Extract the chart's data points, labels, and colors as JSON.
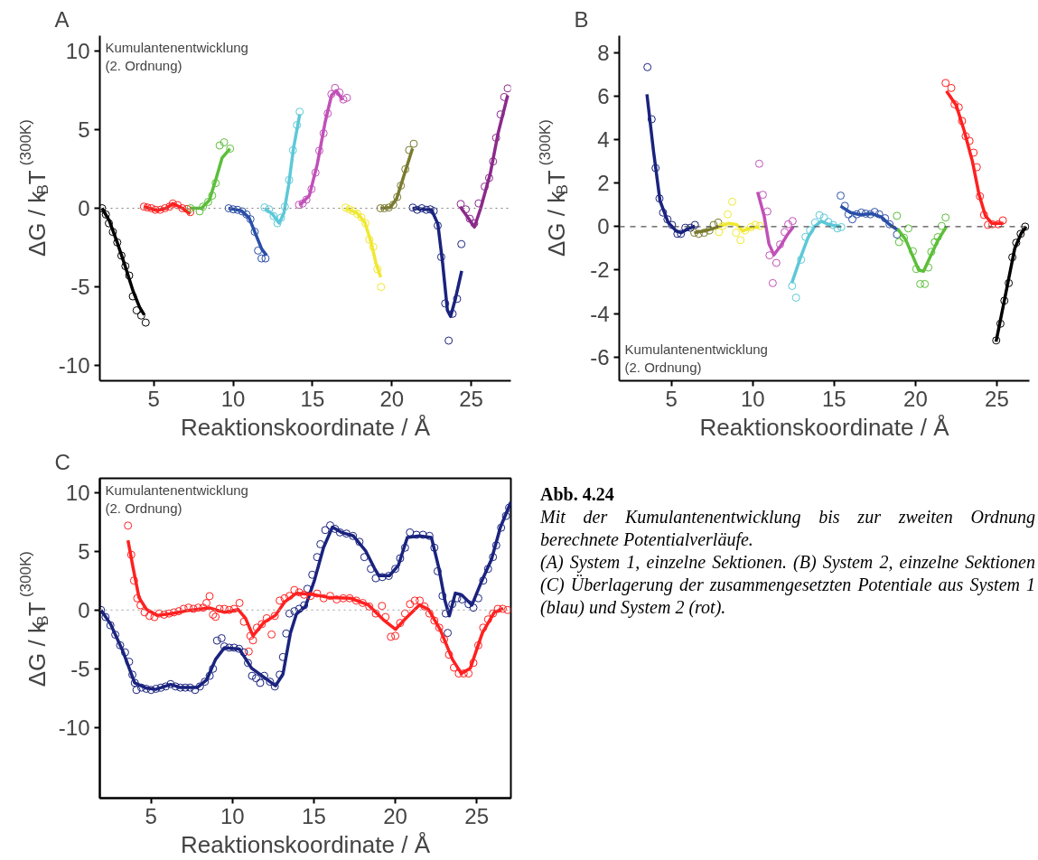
{
  "chart_data": [
    {
      "type": "line",
      "title": "A",
      "xlabel": "Reaktionskoordinate / Å",
      "ylabel": "ΔG / k$_{B}$T$^{(300K)}$",
      "annotations": [
        "Kumulantenentwicklung\n(2. Ordnung)"
      ],
      "xlim": [
        1.6,
        27.5
      ],
      "xticks": [
        5,
        10,
        15,
        20,
        25
      ],
      "ylim": [
        -11,
        11
      ],
      "yticks": [
        -10,
        -5,
        0,
        5,
        10
      ],
      "grid": false,
      "line_style": "solid",
      "ref_lines": [
        {
          "axis": "y",
          "value": 0,
          "color": "#808080",
          "line_style": "dotted"
        }
      ],
      "series": [
        {
          "type": "scatter",
          "color": "#000000",
          "x": [
            1.74,
            1.98,
            2.17,
            2.42,
            2.7,
            2.96,
            3.21,
            3.45,
            3.68,
            3.92,
            4.21,
            4.49
          ],
          "values": [
            0,
            -0.4,
            -0.96,
            -1.51,
            -2.18,
            -3.02,
            -3.69,
            -4.29,
            -5.62,
            -6.51,
            -6.84,
            -7.29
          ]
        },
        {
          "type": "line",
          "color": "#000000",
          "x": [
            1.74,
            2.2,
            2.7,
            3.2,
            3.7,
            4.1,
            4.4
          ],
          "values": [
            0,
            -0.8,
            -2.2,
            -3.7,
            -5.3,
            -6.3,
            -6.8
          ]
        },
        {
          "type": "scatter",
          "color": "#ff2020",
          "x": [
            4.38,
            4.6,
            4.85,
            5.1,
            5.4,
            5.7,
            6.0,
            6.2,
            6.5,
            6.8,
            7.1,
            7.3
          ],
          "values": [
            0.1,
            0.05,
            0,
            -0.1,
            -0.1,
            0,
            0.1,
            0.3,
            0.2,
            0,
            -0.05,
            -0.25
          ]
        },
        {
          "type": "line",
          "color": "#ff2020",
          "x": [
            4.4,
            5.2,
            5.8,
            6.2,
            6.8,
            7.3
          ],
          "values": [
            0.1,
            -0.15,
            0,
            0.3,
            0,
            -0.35
          ]
        },
        {
          "type": "scatter",
          "color": "#5cbf3a",
          "x": [
            7.32,
            7.89,
            8.1,
            8.43,
            8.68,
            8.9,
            9.15,
            9.43,
            9.81
          ],
          "values": [
            0,
            -0.2,
            0.1,
            0.4,
            0.8,
            1.6,
            4.0,
            4.2,
            3.8
          ]
        },
        {
          "type": "line",
          "color": "#5cbf3a",
          "x": [
            7.3,
            8.0,
            8.5,
            8.9,
            9.3,
            9.8
          ],
          "values": [
            0,
            0,
            0.5,
            1.8,
            3.2,
            3.8
          ]
        },
        {
          "type": "scatter",
          "color": "#2a4ea8",
          "x": [
            9.72,
            10.0,
            10.28,
            10.57,
            10.85,
            11.09,
            11.36,
            11.57,
            11.79,
            12.04
          ],
          "values": [
            0,
            -0.07,
            -0.1,
            -0.2,
            -0.4,
            -0.7,
            -1.5,
            -2.7,
            -3.2,
            -3.2
          ]
        },
        {
          "type": "line",
          "color": "#2a4ea8",
          "x": [
            9.7,
            10.5,
            11.0,
            11.4,
            11.8,
            12.1
          ],
          "values": [
            0,
            -0.15,
            -0.6,
            -1.6,
            -2.6,
            -3.0
          ]
        },
        {
          "type": "scatter",
          "color": "#5cc8d8",
          "x": [
            11.98,
            12.26,
            12.55,
            12.79,
            13.02,
            13.26,
            13.53,
            13.77,
            14.02,
            14.19
          ],
          "values": [
            0.05,
            -0.07,
            -0.5,
            -0.96,
            -0.6,
            0.1,
            1.8,
            3.7,
            5.3,
            6.15
          ]
        },
        {
          "type": "line",
          "color": "#5cc8d8",
          "x": [
            12.0,
            12.5,
            12.9,
            13.2,
            13.5,
            13.8,
            14.2
          ],
          "values": [
            0,
            -0.4,
            -0.95,
            -0.3,
            1.5,
            3.8,
            6.0
          ]
        },
        {
          "type": "scatter",
          "color": "#c050b8",
          "x": [
            14.15,
            14.38,
            14.62,
            14.94,
            15.19,
            15.43,
            15.7,
            15.96,
            16.19,
            16.42,
            16.7,
            16.94,
            17.17
          ],
          "values": [
            0.22,
            0.3,
            0.55,
            1.22,
            2.27,
            3.67,
            4.78,
            6.04,
            7.27,
            7.67,
            7.38,
            6.93,
            7.04
          ]
        },
        {
          "type": "line",
          "color": "#c050b8",
          "x": [
            14.2,
            14.8,
            15.3,
            15.8,
            16.2,
            16.5,
            16.9
          ],
          "values": [
            0.2,
            0.8,
            2.8,
            5.5,
            7.2,
            7.5,
            6.9
          ]
        },
        {
          "type": "scatter",
          "color": "#f0e830",
          "x": [
            17.08,
            17.32,
            17.55,
            17.83,
            18.08,
            18.34,
            18.58,
            18.83,
            19.09,
            19.32
          ],
          "values": [
            0.04,
            -0.07,
            -0.18,
            -0.36,
            -0.58,
            -0.96,
            -2.0,
            -2.47,
            -3.89,
            -5.02
          ]
        },
        {
          "type": "line",
          "color": "#f0e830",
          "x": [
            17.1,
            17.8,
            18.3,
            18.7,
            19.0,
            19.3
          ],
          "values": [
            0,
            -0.3,
            -0.9,
            -2.2,
            -3.5,
            -4.4
          ]
        },
        {
          "type": "scatter",
          "color": "#7a7a30",
          "x": [
            19.28,
            19.53,
            19.81,
            20.09,
            20.34,
            20.57,
            20.85,
            21.09,
            21.38
          ],
          "values": [
            0,
            0,
            0.04,
            0.22,
            0.71,
            1.44,
            2.49,
            3.71,
            4.11
          ]
        },
        {
          "type": "line",
          "color": "#7a7a30",
          "x": [
            19.3,
            19.9,
            20.3,
            20.8,
            21.3
          ],
          "values": [
            0,
            0.05,
            0.6,
            2.2,
            3.8
          ]
        },
        {
          "type": "scatter",
          "color": "#1a237e",
          "x": [
            21.32,
            21.6,
            21.89,
            22.17,
            22.42,
            22.64,
            22.89,
            23.11,
            23.36,
            23.58,
            23.83,
            24.11,
            24.38
          ],
          "values": [
            0.04,
            -0.1,
            0,
            -0.1,
            -0.07,
            -0.18,
            -1.11,
            -3.11,
            -6.07,
            -8.44,
            -6.73,
            -5.78,
            -2.29
          ]
        },
        {
          "type": "line",
          "color": "#1a237e",
          "x": [
            21.3,
            22.5,
            22.9,
            23.2,
            23.5,
            23.7,
            24.0,
            24.4
          ],
          "values": [
            0,
            -0.1,
            -1.0,
            -3.5,
            -6.5,
            -6.9,
            -5.8,
            -4.0
          ]
        },
        {
          "type": "scatter",
          "color": "#8b2a8b",
          "x": [
            24.34,
            24.66,
            24.91,
            25.19,
            25.47,
            25.85,
            26.13,
            26.38,
            26.57,
            26.85,
            27.08,
            27.3
          ],
          "values": [
            0.27,
            -0.07,
            -0.67,
            -0.96,
            0.31,
            1.38,
            1.93,
            2.98,
            4.49,
            5.98,
            7.09,
            7.64
          ]
        },
        {
          "type": "line",
          "color": "#8b2a8b",
          "x": [
            24.3,
            24.8,
            25.2,
            25.6,
            26.2,
            26.7,
            27.3
          ],
          "values": [
            0.1,
            -0.6,
            -1.2,
            0,
            2.2,
            4.8,
            7.2
          ]
        }
      ]
    },
    {
      "type": "line",
      "title": "B",
      "xlabel": "Reaktionskoordinate / Å",
      "ylabel": "ΔG / k$_{B}$T$^{(300K)}$",
      "annotations": [
        "Kumulantenentwicklung\n(2. Ordnung)"
      ],
      "xlim": [
        1.8,
        27.0
      ],
      "xticks": [
        5,
        10,
        15,
        20,
        25
      ],
      "ylim": [
        -7.1,
        8.8
      ],
      "yticks": [
        -6,
        -4,
        -2,
        0,
        2,
        4,
        6,
        8
      ],
      "grid": false,
      "line_style": "solid",
      "ref_lines": [
        {
          "axis": "y",
          "value": 0,
          "color": "#505050",
          "line_style": "dashed"
        }
      ],
      "series": [
        {
          "type": "scatter",
          "color": "#1a237e",
          "x": [
            3.53,
            3.79,
            4.03,
            4.27,
            4.49,
            4.76,
            5.04,
            5.37,
            5.59,
            5.86,
            6.17,
            6.45
          ],
          "values": [
            7.35,
            4.95,
            2.7,
            1.3,
            0.65,
            0.34,
            0.08,
            -0.33,
            -0.33,
            -0.05,
            -0.05,
            0.08
          ]
        },
        {
          "type": "line",
          "color": "#1a237e",
          "x": [
            3.5,
            3.9,
            4.3,
            4.8,
            5.3,
            5.6,
            6.0,
            6.45
          ],
          "values": [
            6.1,
            3.5,
            1.2,
            0.2,
            -0.2,
            -0.28,
            -0.1,
            0.02
          ]
        },
        {
          "type": "scatter",
          "color": "#7a7a30",
          "x": [
            6.41,
            6.68,
            7.01,
            7.33,
            7.6,
            7.88
          ],
          "values": [
            -0.28,
            -0.33,
            -0.28,
            -0.17,
            0.08,
            0.19
          ]
        },
        {
          "type": "line",
          "color": "#7a7a30",
          "x": [
            6.4,
            7.0,
            7.5,
            7.9
          ],
          "values": [
            -0.28,
            -0.2,
            -0.1,
            0
          ]
        },
        {
          "type": "scatter",
          "color": "#f0e830",
          "x": [
            7.93,
            8.15,
            8.46,
            8.74,
            8.97,
            9.25,
            9.52,
            9.89,
            10.16,
            10.44
          ],
          "values": [
            -0.25,
            0.03,
            0.57,
            1.15,
            -0.28,
            -0.62,
            -0.17,
            -0.02,
            0.08,
            0.03
          ]
        },
        {
          "type": "line",
          "color": "#f0e830",
          "x": [
            7.9,
            8.5,
            9.0,
            9.4,
            9.9,
            10.4
          ],
          "values": [
            0,
            0.15,
            0.1,
            -0.2,
            -0.05,
            0
          ]
        },
        {
          "type": "scatter",
          "color": "#c050b8",
          "x": [
            10.4,
            10.62,
            10.9,
            11.03,
            11.23,
            11.45,
            11.68,
            11.96,
            12.18,
            12.45
          ],
          "values": [
            2.9,
            1.47,
            0.7,
            -1.32,
            -2.6,
            -1.67,
            -0.82,
            -0.25,
            0.11,
            0.26
          ]
        },
        {
          "type": "line",
          "color": "#c050b8",
          "x": [
            10.3,
            10.7,
            11.0,
            11.3,
            11.7,
            12.1,
            12.5
          ],
          "values": [
            1.6,
            0.5,
            -0.8,
            -1.3,
            -0.9,
            -0.4,
            0
          ]
        },
        {
          "type": "scatter",
          "color": "#5cc8d8",
          "x": [
            12.42,
            12.66,
            12.97,
            13.24,
            13.52,
            13.83,
            14.1,
            14.38,
            14.65,
            14.93,
            15.2,
            15.44
          ],
          "values": [
            -2.73,
            -3.27,
            -1.52,
            -0.47,
            -0.16,
            0.19,
            0.53,
            0.42,
            0.22,
            0.08,
            -0.08,
            -0.02
          ]
        },
        {
          "type": "line",
          "color": "#5cc8d8",
          "x": [
            12.4,
            12.9,
            13.4,
            13.8,
            14.2,
            14.7,
            15.4
          ],
          "values": [
            -2.6,
            -1.5,
            -0.5,
            0,
            0.25,
            0.1,
            0
          ]
        },
        {
          "type": "scatter",
          "color": "#2a4ea8",
          "x": [
            15.4,
            15.66,
            15.88,
            16.12,
            16.39,
            16.67,
            16.94,
            17.22,
            17.49,
            17.77,
            18.13,
            18.41,
            18.86
          ],
          "values": [
            1.43,
            0.96,
            0.57,
            0.34,
            0.57,
            0.65,
            0.6,
            0.57,
            0.68,
            0.57,
            0.39,
            0.11,
            -0.36
          ]
        },
        {
          "type": "line",
          "color": "#2a4ea8",
          "x": [
            15.4,
            16.0,
            16.6,
            17.3,
            17.9,
            18.4,
            18.9
          ],
          "values": [
            0.95,
            0.65,
            0.55,
            0.6,
            0.45,
            0.1,
            -0.15
          ]
        },
        {
          "type": "scatter",
          "color": "#5cbf3a",
          "x": [
            18.86,
            18.99,
            19.29,
            19.56,
            19.84,
            20.05,
            20.29,
            20.57,
            20.79,
            20.97,
            21.19,
            21.37,
            21.61,
            21.85
          ],
          "values": [
            0.5,
            -0.71,
            -0.51,
            -0.08,
            -1.13,
            -1.95,
            -2.64,
            -2.64,
            -1.88,
            -1.16,
            -0.71,
            -0.48,
            0.03,
            0.42
          ]
        },
        {
          "type": "line",
          "color": "#5cbf3a",
          "x": [
            18.9,
            19.4,
            19.8,
            20.2,
            20.5,
            20.9,
            21.4,
            21.9
          ],
          "values": [
            -0.1,
            -0.6,
            -1.3,
            -2.0,
            -2.05,
            -1.4,
            -0.6,
            0
          ]
        },
        {
          "type": "scatter",
          "color": "#ff2020",
          "x": [
            21.85,
            22.2,
            22.4,
            22.66,
            22.86,
            23.08,
            23.32,
            23.57,
            23.77,
            23.96,
            24.21,
            24.45,
            24.73,
            25.09,
            25.37
          ],
          "values": [
            6.62,
            6.39,
            5.64,
            5.5,
            4.87,
            4.17,
            3.95,
            3.41,
            2.74,
            1.4,
            0.54,
            0.08,
            0.11,
            0.11,
            0.29
          ]
        },
        {
          "type": "line",
          "color": "#ff2020",
          "x": [
            21.9,
            22.5,
            23.0,
            23.5,
            23.9,
            24.3,
            24.7,
            25.4
          ],
          "values": [
            6.25,
            5.6,
            4.4,
            3.0,
            1.5,
            0.5,
            0.15,
            0.15
          ]
        },
        {
          "type": "scatter",
          "color": "#000000",
          "x": [
            24.96,
            25.22,
            25.46,
            25.73,
            25.95,
            26.19,
            26.46,
            26.74
          ],
          "values": [
            -5.24,
            -4.47,
            -3.41,
            -2.6,
            -1.41,
            -0.74,
            -0.33,
            0
          ]
        },
        {
          "type": "line",
          "color": "#000000",
          "x": [
            24.95,
            25.3,
            25.7,
            26.1,
            26.5,
            26.8
          ],
          "values": [
            -5.3,
            -4.0,
            -2.5,
            -1.0,
            -0.3,
            0
          ]
        }
      ]
    },
    {
      "type": "line",
      "title": "C",
      "xlabel": "Reaktionskoordinate / Å",
      "ylabel": "ΔG / k$_{B}$T$^{(300K)}$",
      "annotations": [
        "Kumulantenentwicklung\n(2. Ordnung)"
      ],
      "xlim": [
        1.85,
        27.1
      ],
      "xticks": [
        5,
        10,
        15,
        20,
        25
      ],
      "ylim": [
        -16,
        11.2
      ],
      "yticks": [
        -10,
        -5,
        0,
        5,
        10
      ],
      "grid": false,
      "line_style": "solid",
      "ref_lines": [
        {
          "axis": "y",
          "value": 0,
          "color": "#a0a0a0",
          "line_style": "dotted"
        }
      ],
      "series": [
        {
          "type": "scatter",
          "color": "#1a237e",
          "x": [
            1.92,
            2.2,
            2.5,
            2.8,
            3.1,
            3.4,
            3.65,
            3.85,
            4.0,
            4.1,
            4.4,
            4.7,
            5.0,
            5.3,
            5.6,
            5.9,
            6.2,
            6.5,
            6.8,
            7.1,
            7.4,
            7.7,
            8.0,
            8.3,
            8.6,
            8.8,
            9.05,
            9.33,
            9.5,
            9.8,
            10.1,
            10.4,
            10.7,
            10.95,
            11.2,
            11.45,
            11.7,
            11.95,
            12.3,
            12.6,
            12.9,
            13.1,
            13.3,
            13.5,
            13.8,
            14.1,
            14.4,
            14.6,
            14.9,
            15.2,
            15.4,
            15.7,
            16.0,
            16.3,
            16.6,
            17.0,
            17.4,
            17.8,
            18.1,
            18.5,
            18.8,
            19.2,
            19.6,
            20.0,
            20.3,
            20.6,
            20.9,
            21.3,
            21.7,
            22.1,
            22.4,
            22.6,
            22.9,
            23.1,
            23.22,
            23.5,
            23.8,
            24.1,
            24.5,
            24.8,
            25.1,
            25.4,
            25.7,
            26.0,
            26.2,
            26.5,
            26.8,
            27.0
          ],
          "values": [
            0,
            -0.6,
            -1.3,
            -2.1,
            -3.0,
            -3.6,
            -4.4,
            -5.5,
            -6.2,
            -6.8,
            -6.6,
            -6.7,
            -6.8,
            -6.7,
            -6.6,
            -6.5,
            -6.3,
            -6.5,
            -6.6,
            -6.6,
            -6.6,
            -6.8,
            -6.5,
            -6.1,
            -5.6,
            -5.0,
            -2.6,
            -2.4,
            -3.1,
            -3.2,
            -3.2,
            -3.3,
            -3.6,
            -4.5,
            -5.6,
            -5.8,
            -6.2,
            -5.6,
            -6.1,
            -6.5,
            -5.5,
            -4.0,
            -2.0,
            -0.3,
            -0.1,
            0.1,
            0.4,
            1.8,
            3.0,
            4.5,
            5.6,
            6.8,
            7.2,
            6.9,
            6.6,
            6.5,
            6.3,
            5.8,
            4.5,
            3.5,
            2.7,
            2.8,
            2.9,
            3.5,
            4.4,
            5.3,
            6.6,
            6.4,
            6.4,
            6.3,
            5.3,
            3.3,
            1.2,
            -0.3,
            -1.95,
            0.5,
            1.0,
            0.9,
            0.5,
            0.2,
            1.0,
            2.5,
            3.5,
            4.5,
            5.5,
            7.0,
            8.0,
            8.7
          ]
        },
        {
          "type": "line",
          "color": "#1a237e",
          "x": [
            1.92,
            2.51,
            3.25,
            3.99,
            4.72,
            5.28,
            6.2,
            6.75,
            7.85,
            8.41,
            8.96,
            9.51,
            10.43,
            11.17,
            11.91,
            12.64,
            13.1,
            13.56,
            13.93,
            14.48,
            15.04,
            15.59,
            16.14,
            16.69,
            17.43,
            18.17,
            18.72,
            18.99,
            19.64,
            20.19,
            20.74,
            21.48,
            22.22,
            22.68,
            23.05,
            23.32,
            23.69,
            24.06,
            24.71,
            25.26,
            25.91,
            26.46,
            27.1
          ],
          "values": [
            0,
            -1.2,
            -3.45,
            -6.2,
            -6.65,
            -6.75,
            -6.33,
            -6.58,
            -6.58,
            -5.95,
            -4.2,
            -3.2,
            -3.33,
            -4.95,
            -5.7,
            -6.45,
            -5.45,
            -1.95,
            -0.33,
            0.3,
            2.55,
            5.3,
            7.05,
            6.6,
            6.3,
            5.05,
            3.55,
            2.92,
            2.92,
            3.8,
            6.17,
            6.3,
            6.17,
            3.55,
            0.8,
            -0.5,
            1.43,
            1.3,
            0.43,
            2.3,
            4.3,
            7.05,
            9.18
          ]
        },
        {
          "type": "scatter",
          "color": "#ff2020",
          "x": [
            3.58,
            3.78,
            3.95,
            4.15,
            4.35,
            4.6,
            4.9,
            5.2,
            5.5,
            5.8,
            6.1,
            6.4,
            6.7,
            7.0,
            7.3,
            7.6,
            7.9,
            8.2,
            8.4,
            8.59,
            8.8,
            8.96,
            9.2,
            9.5,
            9.8,
            10.1,
            10.43,
            10.7,
            11.0,
            11.1,
            11.26,
            11.5,
            11.8,
            12.1,
            12.4,
            12.6,
            12.9,
            13.2,
            13.5,
            13.8,
            14.1,
            14.4,
            14.8,
            15.2,
            15.6,
            16.0,
            16.4,
            16.8,
            17.2,
            17.6,
            18.0,
            18.4,
            18.8,
            19.18,
            19.4,
            19.73,
            20.0,
            20.3,
            20.6,
            20.9,
            21.2,
            21.5,
            21.8,
            22.1,
            22.4,
            22.7,
            23.0,
            23.3,
            23.6,
            23.9,
            24.2,
            24.5,
            24.8,
            25.1,
            25.4,
            25.7,
            26.0,
            26.3,
            26.6,
            26.9
          ],
          "values": [
            7.18,
            4.7,
            2.5,
            1.0,
            0.4,
            -0.2,
            -0.5,
            -0.6,
            -0.3,
            -0.4,
            -0.3,
            -0.2,
            -0.1,
            0.1,
            0.2,
            0.1,
            0.2,
            0.2,
            0.6,
            1.18,
            -0.4,
            -0.58,
            0.1,
            0.1,
            0.0,
            0.1,
            0.6,
            -1.0,
            -3.53,
            -2.2,
            -2.58,
            -1.5,
            -1.2,
            -0.7,
            -2.08,
            -0.5,
            0.8,
            1.0,
            1.2,
            1.7,
            1.5,
            1.3,
            1.2,
            1.4,
            1.0,
            1.2,
            0.9,
            1.0,
            1.0,
            0.8,
            0.6,
            0.3,
            -0.3,
            0.35,
            -0.6,
            -2.28,
            -2.2,
            -1.1,
            -0.3,
            0.5,
            0.8,
            0.8,
            0.3,
            -0.3,
            -0.9,
            -1.5,
            -2.5,
            -3.8,
            -4.9,
            -5.4,
            -5.4,
            -5.4,
            -4.5,
            -3.0,
            -1.5,
            -0.8,
            -0.3,
            0.1,
            0.1,
            0.0
          ]
        },
        {
          "type": "line",
          "color": "#ff2020",
          "x": [
            3.58,
            3.9,
            4.26,
            4.72,
            5.37,
            6.2,
            7.3,
            8.59,
            9.51,
            10.34,
            10.8,
            11.26,
            11.91,
            12.64,
            13.2,
            13.93,
            15.04,
            15.96,
            17.25,
            18.35,
            19.27,
            20.01,
            20.56,
            21.48,
            22.04,
            22.77,
            23.51,
            24.06,
            24.61,
            25.35,
            26.08,
            26.64
          ],
          "values": [
            5.93,
            3.55,
            1.05,
            0.05,
            -0.45,
            -0.33,
            -0.03,
            0.18,
            -0.2,
            0.05,
            -0.7,
            -2.2,
            -1.08,
            -0.45,
            0.68,
            1.43,
            1.3,
            1.05,
            1.0,
            0.43,
            -0.83,
            -1.65,
            -0.83,
            0.43,
            0.05,
            -1.7,
            -4.2,
            -5.4,
            -4.95,
            -1.95,
            -0.2,
            0.13
          ]
        }
      ]
    },
    {
      "type": "other",
      "title": "Abb. 4.24",
      "annotations": [
        "Mit der Kumulantenentwicklung bis zur zweiten Ordnung berechnete Potentialverläufe.",
        "(A) System 1, einzelne Sektionen. (B) System 2, einzelne Sektionen (C) Überlagerung der zusammengesetzten Potentiale aus System 1 (blau) und System 2 (rot)."
      ]
    }
  ]
}
